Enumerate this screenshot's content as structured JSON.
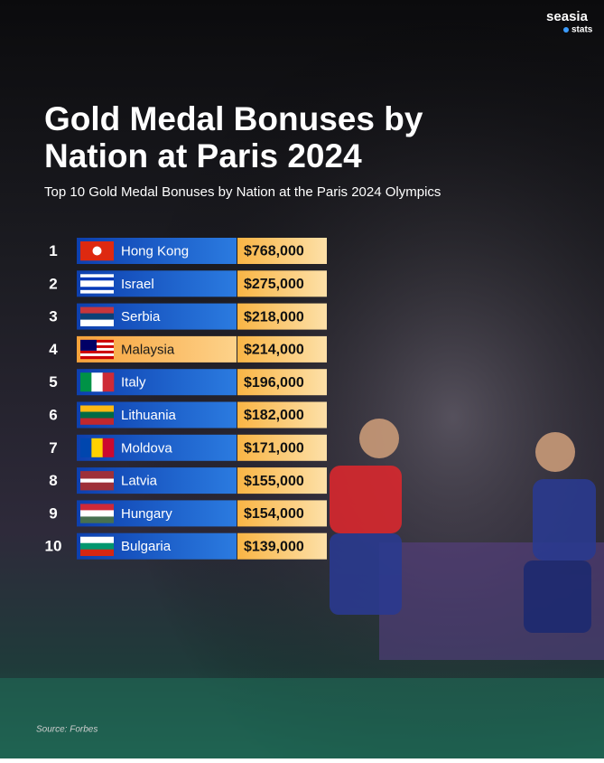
{
  "brand": {
    "name": "seasia",
    "sub": "stats"
  },
  "title": [
    "Gold Medal Bonuses by",
    "Nation at Paris 2024"
  ],
  "subtitle": "Top 10 Gold Medal Bonuses by Nation at the Paris 2024 Olympics",
  "table": {
    "rows": [
      [
        "1",
        "Hong Kong",
        "$768,000"
      ],
      [
        "2",
        "Israel",
        "$275,000"
      ],
      [
        "3",
        "Serbia",
        "$218,000"
      ],
      [
        "4",
        "Malaysia",
        "$214,000"
      ],
      [
        "5",
        "Italy",
        "$196,000"
      ],
      [
        "6",
        "Lithuania",
        "$182,000"
      ],
      [
        "7",
        "Moldova",
        "$171,000"
      ],
      [
        "8",
        "Latvia",
        "$155,000"
      ],
      [
        "9",
        "Hungary",
        "$154,000"
      ],
      [
        "10",
        "Bulgaria",
        "$139,000"
      ]
    ]
  },
  "source": "Source: Forbes"
}
